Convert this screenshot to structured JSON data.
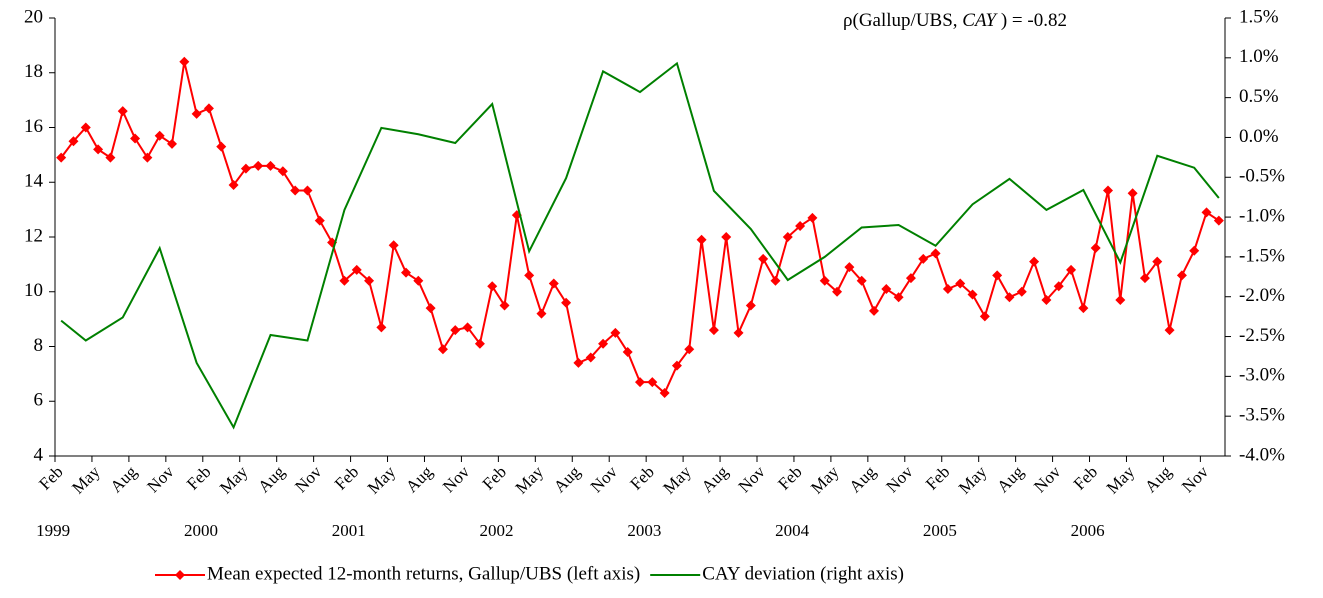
{
  "chart_data": {
    "type": "line",
    "annotation": {
      "before": "ρ(Gallup/UBS, ",
      "italic": "CAY",
      "after": " ) = -0.82"
    },
    "x": [
      "1999-02",
      "1999-03",
      "1999-04",
      "1999-05",
      "1999-06",
      "1999-07",
      "1999-08",
      "1999-09",
      "1999-10",
      "1999-11",
      "1999-12",
      "2000-01",
      "2000-02",
      "2000-03",
      "2000-04",
      "2000-05",
      "2000-06",
      "2000-07",
      "2000-08",
      "2000-09",
      "2000-10",
      "2000-11",
      "2000-12",
      "2001-01",
      "2001-02",
      "2001-03",
      "2001-04",
      "2001-05",
      "2001-06",
      "2001-07",
      "2001-08",
      "2001-09",
      "2001-10",
      "2001-11",
      "2001-12",
      "2002-01",
      "2002-02",
      "2002-03",
      "2002-04",
      "2002-05",
      "2002-06",
      "2002-07",
      "2002-08",
      "2002-09",
      "2002-10",
      "2002-11",
      "2002-12",
      "2003-01",
      "2003-02",
      "2003-03",
      "2003-04",
      "2003-05",
      "2003-06",
      "2003-07",
      "2003-08",
      "2003-09",
      "2003-10",
      "2003-11",
      "2003-12",
      "2004-01",
      "2004-02",
      "2004-03",
      "2004-04",
      "2004-05",
      "2004-06",
      "2004-07",
      "2004-08",
      "2004-09",
      "2004-10",
      "2004-11",
      "2004-12",
      "2005-01",
      "2005-02",
      "2005-03",
      "2005-04",
      "2005-05",
      "2005-06",
      "2005-07",
      "2005-08",
      "2005-09",
      "2005-10",
      "2005-11",
      "2005-12",
      "2006-01",
      "2006-02",
      "2006-03",
      "2006-04",
      "2006-05",
      "2006-06",
      "2006-07",
      "2006-08",
      "2006-09",
      "2006-10",
      "2006-11",
      "2006-12"
    ],
    "x_month_labels": [
      "Feb",
      null,
      null,
      "May",
      null,
      null,
      "Aug",
      null,
      null,
      "Nov",
      null,
      null,
      "Feb",
      null,
      null,
      "May",
      null,
      null,
      "Aug",
      null,
      null,
      "Nov",
      null,
      null,
      "Feb",
      null,
      null,
      "May",
      null,
      null,
      "Aug",
      null,
      null,
      "Nov",
      null,
      null,
      "Feb",
      null,
      null,
      "May",
      null,
      null,
      "Aug",
      null,
      null,
      "Nov",
      null,
      null,
      "Feb",
      null,
      null,
      "May",
      null,
      null,
      "Aug",
      null,
      null,
      "Nov",
      null,
      null,
      "Feb",
      null,
      null,
      "May",
      null,
      null,
      "Aug",
      null,
      null,
      "Nov",
      null,
      null,
      "Feb",
      null,
      null,
      "May",
      null,
      null,
      "Aug",
      null,
      null,
      "Nov",
      null,
      null,
      "Feb",
      null,
      null,
      "May",
      null,
      null,
      "Aug",
      null,
      null,
      "Nov",
      null
    ],
    "x_year_labels": [
      "1999",
      null,
      null,
      null,
      null,
      null,
      null,
      null,
      null,
      null,
      null,
      null,
      "2000",
      null,
      null,
      null,
      null,
      null,
      null,
      null,
      null,
      null,
      null,
      null,
      "2001",
      null,
      null,
      null,
      null,
      null,
      null,
      null,
      null,
      null,
      null,
      null,
      "2002",
      null,
      null,
      null,
      null,
      null,
      null,
      null,
      null,
      null,
      null,
      null,
      "2003",
      null,
      null,
      null,
      null,
      null,
      null,
      null,
      null,
      null,
      null,
      null,
      "2004",
      null,
      null,
      null,
      null,
      null,
      null,
      null,
      null,
      null,
      null,
      null,
      "2005",
      null,
      null,
      null,
      null,
      null,
      null,
      null,
      null,
      null,
      null,
      null,
      "2006",
      null,
      null,
      null,
      null,
      null,
      null,
      null,
      null,
      null,
      null
    ],
    "series": [
      {
        "name": "Mean expected 12-month returns, Gallup/UBS (left axis)",
        "color": "#ff0000",
        "marker": "diamond",
        "values": [
          14.9,
          15.5,
          16.0,
          15.2,
          14.9,
          16.6,
          15.6,
          14.9,
          15.7,
          15.4,
          18.4,
          16.5,
          16.7,
          15.3,
          13.9,
          14.5,
          14.6,
          14.6,
          14.4,
          13.7,
          13.7,
          12.6,
          11.8,
          10.4,
          10.8,
          10.4,
          8.7,
          11.7,
          10.7,
          10.4,
          9.4,
          7.9,
          8.6,
          8.7,
          8.1,
          10.2,
          9.5,
          12.8,
          10.6,
          9.2,
          10.3,
          9.6,
          7.4,
          7.6,
          8.1,
          8.5,
          7.8,
          6.7,
          6.7,
          6.3,
          7.3,
          7.9,
          11.9,
          8.6,
          12.0,
          8.5,
          9.5,
          11.2,
          10.4,
          12.0,
          12.4,
          12.7,
          10.4,
          10.0,
          10.9,
          10.4,
          9.3,
          10.1,
          9.8,
          10.5,
          11.2,
          11.4,
          10.1,
          10.3,
          9.9,
          9.1,
          10.6,
          9.8,
          10.0,
          11.1,
          9.7,
          10.2,
          10.8,
          9.4,
          11.6,
          13.7,
          9.7,
          13.6,
          10.5,
          11.1,
          8.6,
          10.6,
          11.5,
          12.9,
          12.6
        ]
      },
      {
        "name": "CAY deviation (right axis)",
        "color": "#008000",
        "axis": "y2",
        "x": [
          "1999-02",
          "1999-04",
          "1999-07",
          "1999-10",
          "2000-01",
          "2000-04",
          "2000-07",
          "2000-10",
          "2001-01",
          "2001-04",
          "2001-07",
          "2001-10",
          "2002-01",
          "2002-04",
          "2002-07",
          "2002-10",
          "2003-01",
          "2003-04",
          "2003-07",
          "2003-10",
          "2004-01",
          "2004-04",
          "2004-07",
          "2004-10",
          "2005-01",
          "2005-04",
          "2005-07",
          "2005-10",
          "2006-01",
          "2006-04",
          "2006-07",
          "2006-10",
          "2006-12"
        ],
        "values": [
          -2.3,
          -2.55,
          -2.26,
          -1.39,
          -2.83,
          -3.64,
          -2.48,
          -2.55,
          -0.91,
          0.12,
          0.04,
          -0.07,
          0.42,
          -1.43,
          -0.51,
          0.83,
          0.57,
          0.93,
          -0.67,
          -1.15,
          -1.79,
          -1.5,
          -1.13,
          -1.1,
          -1.36,
          -0.84,
          -0.52,
          -0.91,
          -0.66,
          -1.57,
          -0.23,
          -0.38,
          -0.76
        ]
      }
    ],
    "ylim": [
      4,
      20
    ],
    "yticks": [
      4,
      6,
      8,
      10,
      12,
      14,
      16,
      18,
      20
    ],
    "y2lim": [
      -4.0,
      1.5
    ],
    "y2ticks": [
      {
        "value": 1.5,
        "label": "1.5%"
      },
      {
        "value": 1.0,
        "label": "1.0%"
      },
      {
        "value": 0.5,
        "label": "0.5%"
      },
      {
        "value": 0.0,
        "label": "0.0%"
      },
      {
        "value": -0.5,
        "label": "-0.5%"
      },
      {
        "value": -1.0,
        "label": "-1.0%"
      },
      {
        "value": -1.5,
        "label": "-1.5%"
      },
      {
        "value": -2.0,
        "label": "-2.0%"
      },
      {
        "value": -2.5,
        "label": "-2.5%"
      },
      {
        "value": -3.0,
        "label": "-3.0%"
      },
      {
        "value": -3.5,
        "label": "-3.5%"
      },
      {
        "value": -4.0,
        "label": "-4.0%"
      }
    ],
    "grid": false,
    "legend": "bottom"
  }
}
